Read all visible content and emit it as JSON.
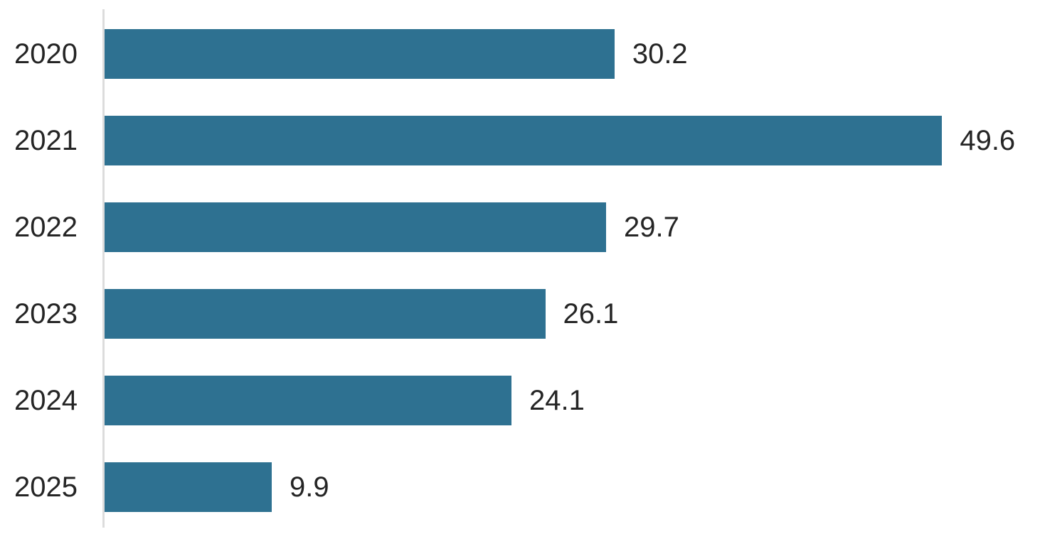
{
  "chart_data": {
    "type": "bar",
    "orientation": "horizontal",
    "title": "",
    "xlabel": "",
    "ylabel": "",
    "categories": [
      "2020",
      "2021",
      "2022",
      "2023",
      "2024",
      "2025"
    ],
    "values": [
      30.2,
      49.6,
      29.7,
      26.1,
      24.1,
      9.9
    ],
    "data_labels": [
      "30.2",
      "49.6",
      "29.7",
      "26.1",
      "24.1",
      "9.9"
    ],
    "xlim": [
      0,
      55.4
    ],
    "grid": false,
    "legend": false,
    "bar_color": "#2e7191",
    "axis_line_color": "#dcdcdc",
    "label_color": "#252525"
  }
}
